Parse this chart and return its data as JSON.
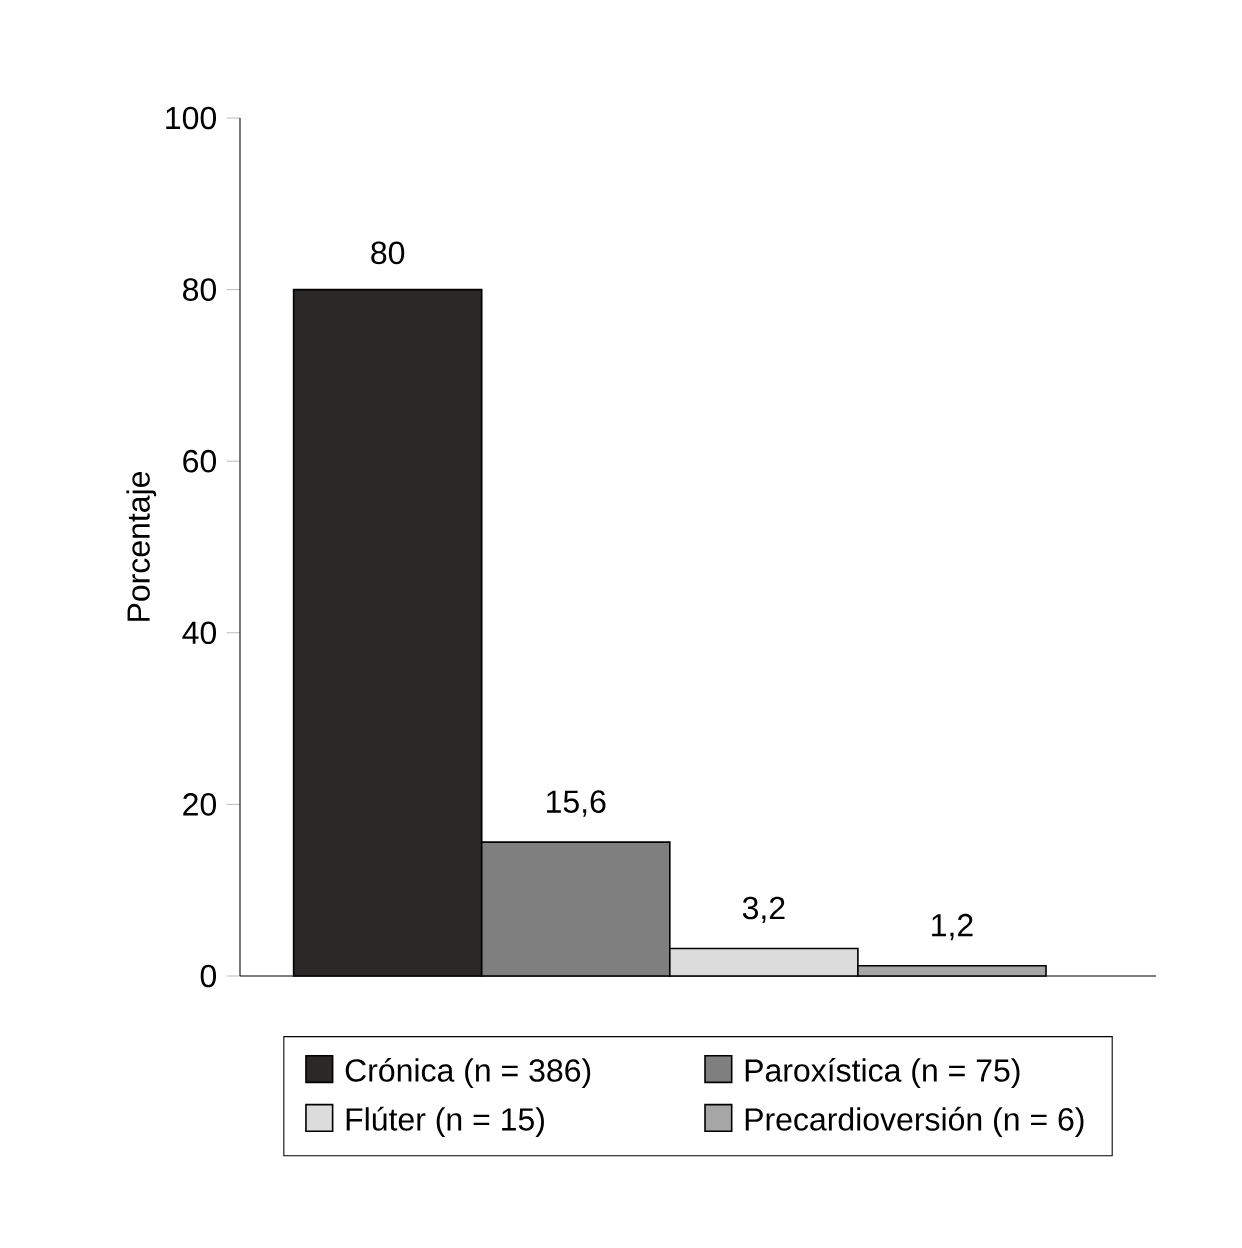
{
  "chart_data": {
    "type": "bar",
    "ylabel": "Porcentaje",
    "categories": [
      null
    ],
    "ylim": [
      0,
      100
    ],
    "yticks": [
      0,
      20,
      40,
      60,
      80,
      100
    ],
    "grid": false,
    "legend": "bottom",
    "series": [
      {
        "name": "Crónica (n = 386)",
        "color": "#2b2828",
        "values": [
          80
        ],
        "value_labels": [
          "80"
        ]
      },
      {
        "name": "Paroxística (n = 75)",
        "color": "#7f7f7f",
        "values": [
          15.6
        ],
        "value_labels": [
          "15,6"
        ]
      },
      {
        "name": "Flúter (n = 15)",
        "color": "#dcdcdc",
        "values": [
          3.2
        ],
        "value_labels": [
          "3,2"
        ]
      },
      {
        "name": "Precardioversión (n = 6)",
        "color": "#a6a6a6",
        "values": [
          1.2
        ],
        "value_labels": [
          "1,2"
        ]
      }
    ]
  }
}
